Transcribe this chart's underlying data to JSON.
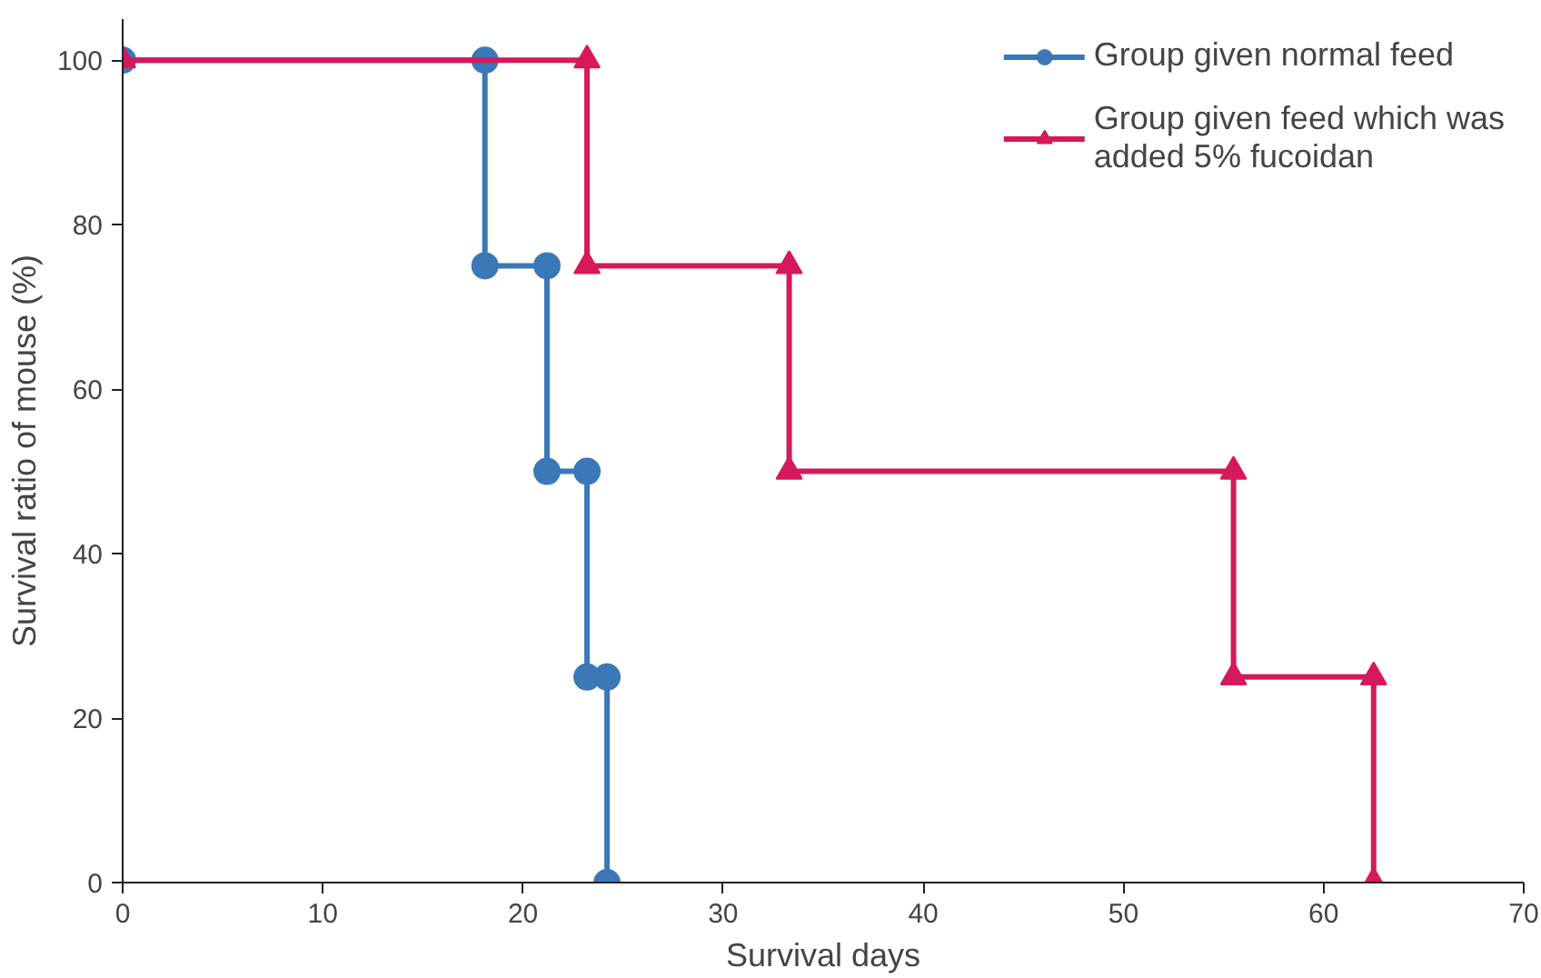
{
  "chart_data": {
    "type": "line",
    "xlabel": "Survival days",
    "ylabel": "Survival ratio of mouse (%)",
    "xlim": [
      0,
      70
    ],
    "ylim": [
      0,
      105
    ],
    "xticks": [
      0,
      10,
      20,
      30,
      40,
      50,
      60,
      70
    ],
    "yticks": [
      0,
      20,
      40,
      60,
      80,
      100
    ],
    "grid": false,
    "legend": "top right",
    "line_style": "solid",
    "series": [
      {
        "name": "Group given normal feed",
        "color": "#3a78b8",
        "marker": "circle",
        "x": [
          0,
          18.1,
          18.1,
          21.2,
          21.2,
          23.2,
          23.2,
          24.2,
          24.2
        ],
        "values": [
          100,
          100,
          75,
          75,
          50,
          50,
          25,
          25,
          0
        ]
      },
      {
        "name": "Group given feed which was added 5% fucoidan",
        "color": "#d6195b",
        "marker": "triangle",
        "x": [
          0,
          23.2,
          23.2,
          33.3,
          33.3,
          55.5,
          55.5,
          62.5,
          62.5
        ],
        "values": [
          100,
          100,
          75,
          75,
          50,
          50,
          25,
          25,
          0
        ]
      }
    ]
  }
}
